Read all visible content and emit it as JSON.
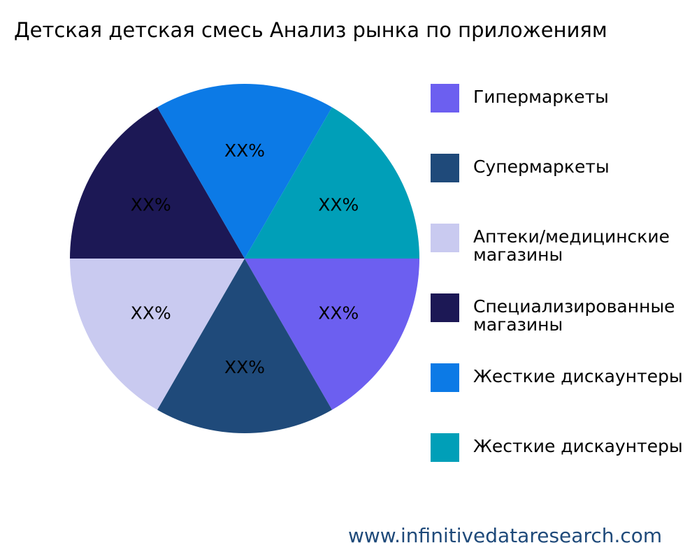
{
  "chart_data": {
    "type": "pie",
    "title": "Детская детская смесь Анализ рынка по приложениям",
    "legend_position": "right",
    "slices": [
      {
        "label": "Гипермаркеты",
        "value": 1,
        "data_label": "XX%",
        "color": "#6c5ff0"
      },
      {
        "label": "Супермаркеты",
        "value": 1,
        "data_label": "XX%",
        "color": "#1f4a7a"
      },
      {
        "label": "Аптеки/медицинские\nмагазины",
        "value": 1,
        "data_label": "XX%",
        "color": "#c9caf0"
      },
      {
        "label": "Специализированные\nмагазины",
        "value": 1,
        "data_label": "XX%",
        "color": "#1c1855"
      },
      {
        "label": "Жесткие дискаунтеры",
        "value": 1,
        "data_label": "XX%",
        "color": "#0c7ae6"
      },
      {
        "label": "Жесткие дискаунтеры",
        "value": 1,
        "data_label": "XX%",
        "color": "#009fb8"
      }
    ]
  },
  "watermark": "www.infinitivedataresearch.com"
}
